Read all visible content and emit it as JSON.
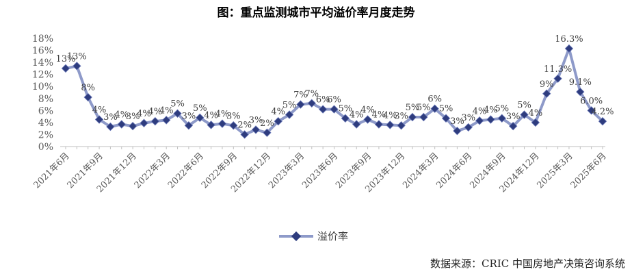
{
  "chart_data": {
    "type": "line",
    "title": "图：重点监测城市平均溢价率月度走势",
    "ylim": [
      0,
      18
    ],
    "yticks": [
      "0%",
      "2%",
      "4%",
      "6%",
      "8%",
      "10%",
      "12%",
      "14%",
      "16%",
      "18%"
    ],
    "grid": false,
    "legend": "bottom-center",
    "series_color": "#8e9ac9",
    "marker_color": "#2e3c7e",
    "x_tick_labels": [
      "2021年6月",
      "2021年9月",
      "2021年12月",
      "2022年3月",
      "2022年6月",
      "2022年9月",
      "2022年12月",
      "2023年3月",
      "2023年6月",
      "2023年9月",
      "2023年12月",
      "2024年3月",
      "2024年6月",
      "2024年9月",
      "2024年12月",
      "2025年3月",
      "2025年6月"
    ],
    "x": [
      "2021-06",
      "2021-07",
      "2021-08",
      "2021-09",
      "2021-10",
      "2021-11",
      "2021-12",
      "2022-01",
      "2022-02",
      "2022-03",
      "2022-04",
      "2022-05",
      "2022-06",
      "2022-07",
      "2022-08",
      "2022-09",
      "2022-10",
      "2022-11",
      "2022-12",
      "2023-01",
      "2023-02",
      "2023-03",
      "2023-04",
      "2023-05",
      "2023-06",
      "2023-07",
      "2023-08",
      "2023-09",
      "2023-10",
      "2023-11",
      "2023-12",
      "2024-01",
      "2024-02",
      "2024-03",
      "2024-04",
      "2024-05",
      "2024-06",
      "2024-07",
      "2024-08",
      "2024-09",
      "2024-10",
      "2024-11",
      "2024-12",
      "2025-01",
      "2025-02",
      "2025-03",
      "2025-04",
      "2025-05",
      "2025-06"
    ],
    "series": [
      {
        "name": "溢价率",
        "values": [
          13.0,
          13.4,
          8.2,
          4.5,
          3.3,
          3.7,
          3.4,
          3.9,
          4.2,
          4.4,
          5.5,
          3.5,
          4.8,
          3.6,
          3.8,
          3.5,
          2.0,
          2.8,
          2.3,
          4.2,
          5.3,
          7.0,
          7.2,
          6.2,
          6.2,
          4.7,
          3.7,
          4.5,
          3.7,
          3.6,
          3.5,
          4.9,
          4.9,
          6.3,
          4.7,
          2.6,
          3.2,
          4.3,
          4.5,
          4.7,
          3.4,
          5.3,
          4.0,
          8.8,
          11.3,
          16.3,
          9.1,
          6.0,
          4.2
        ],
        "labels": [
          "13%",
          "13%",
          "8%",
          "4%",
          "3%",
          "4%",
          "3%",
          "4%",
          "4%",
          "4%",
          "5%",
          "3%",
          "5%",
          "4%",
          "4%",
          "3%",
          "2%",
          "3%",
          "2%",
          "4%",
          "5%",
          "7%",
          "7%",
          "6%",
          "6%",
          "5%",
          "4%",
          "4%",
          "4%",
          "4%",
          "3%",
          "5%",
          "5%",
          "6%",
          "5%",
          "3%",
          "3%",
          "4%",
          "4%",
          "5%",
          "3%",
          "5%",
          "4%",
          "9%",
          "11.3%",
          "16.3%",
          "9.1%",
          "6.0%",
          "4.2%"
        ]
      }
    ]
  },
  "source_note": "数据来源：CRIC 中国房地产决策咨询系统"
}
